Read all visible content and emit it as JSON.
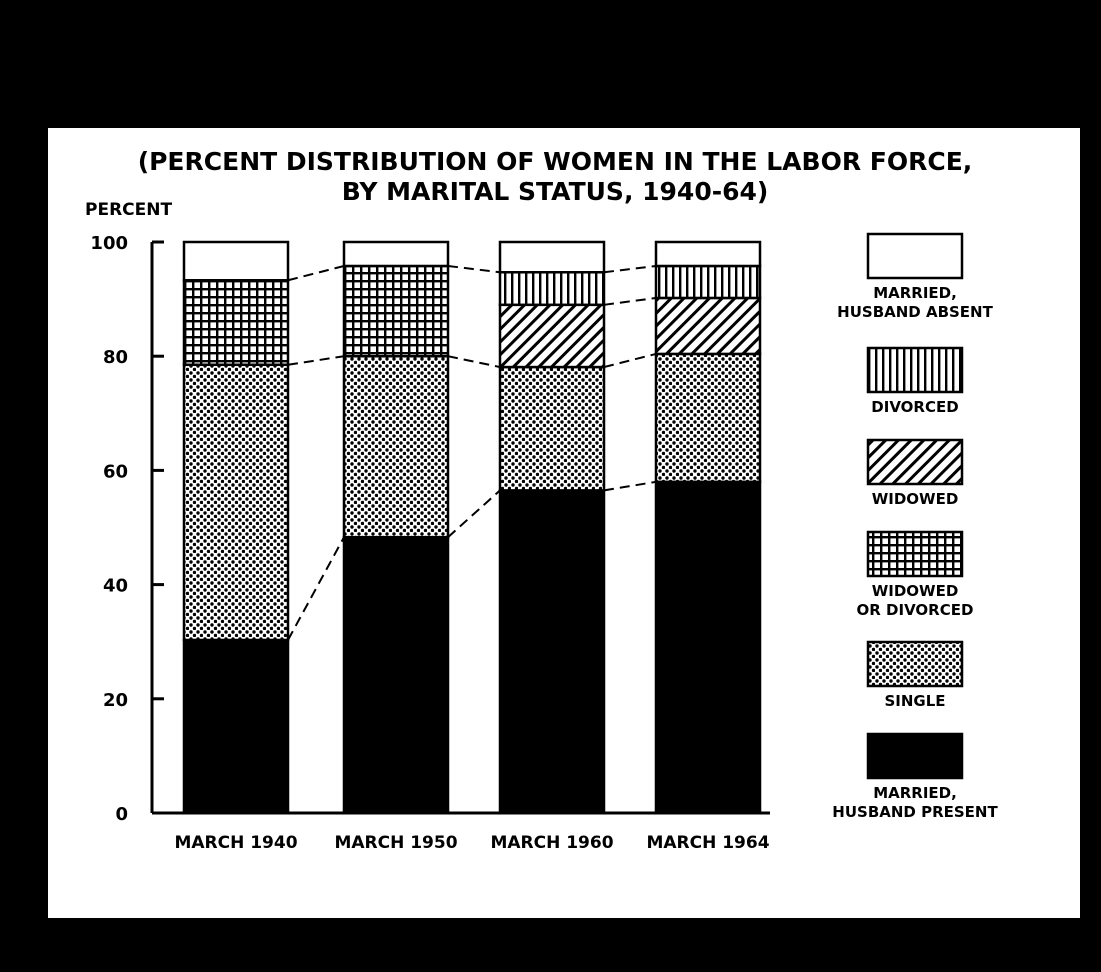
{
  "chart_data": {
    "type": "bar",
    "stacked": true,
    "title_line1": "(PERCENT DISTRIBUTION OF WOMEN IN THE LABOR FORCE,",
    "title_line2": "BY MARITAL STATUS, 1940-64)",
    "ylabel": "PERCENT",
    "ylim": [
      0,
      100
    ],
    "yticks": [
      "0",
      "20",
      "40",
      "60",
      "80",
      "100"
    ],
    "yticks_values": [
      0,
      20,
      40,
      60,
      80,
      100
    ],
    "categories": [
      "MARCH 1940",
      "MARCH 1950",
      "MARCH 1960",
      "MARCH 1964"
    ],
    "series": [
      {
        "key": "married_present",
        "values": [
          30.3,
          48.3,
          56.5,
          58.0
        ]
      },
      {
        "key": "single",
        "values": [
          48.2,
          31.7,
          21.6,
          22.4
        ]
      },
      {
        "key": "wid_or_div",
        "values": [
          14.8,
          15.8,
          null,
          null
        ]
      },
      {
        "key": "widowed",
        "values": [
          null,
          null,
          10.9,
          9.8
        ]
      },
      {
        "key": "divorced",
        "values": [
          null,
          null,
          5.7,
          5.6
        ]
      },
      {
        "key": "married_absent",
        "values": [
          6.7,
          4.2,
          5.3,
          4.2
        ]
      }
    ],
    "legend": [
      {
        "key": "married_absent",
        "lines": [
          "MARRIED,",
          "HUSBAND ABSENT"
        ],
        "pattern": "white"
      },
      {
        "key": "divorced",
        "lines": [
          "DIVORCED"
        ],
        "pattern": "vertical-lines"
      },
      {
        "key": "widowed",
        "lines": [
          "WIDOWED"
        ],
        "pattern": "diagonal-lines"
      },
      {
        "key": "wid_or_div",
        "lines": [
          "WIDOWED",
          "OR DIVORCED"
        ],
        "pattern": "crosshatch"
      },
      {
        "key": "single",
        "lines": [
          "SINGLE"
        ],
        "pattern": "dots"
      },
      {
        "key": "married_present",
        "lines": [
          "MARRIED,",
          "HUSBAND PRESENT"
        ],
        "pattern": "solid-black"
      }
    ],
    "legend_position": "right",
    "connector_lines": "dashed",
    "grid": false
  },
  "colors": {
    "background": "#000000",
    "panel": "#ffffff",
    "ink": "#000000"
  }
}
